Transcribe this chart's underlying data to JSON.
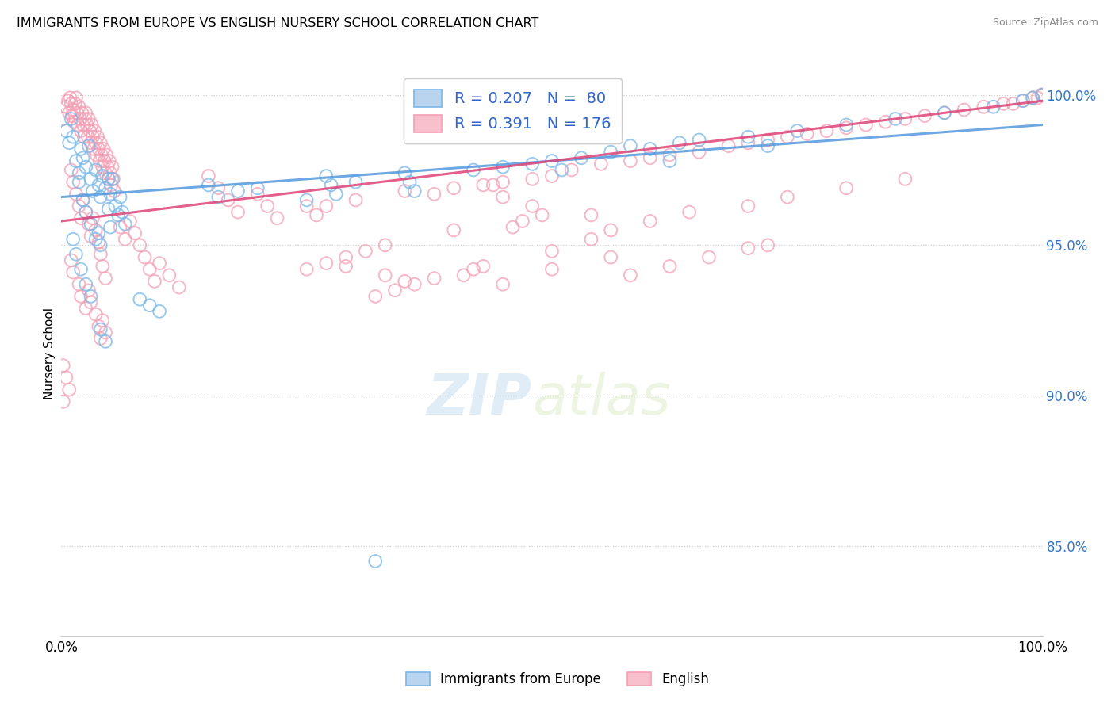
{
  "title": "IMMIGRANTS FROM EUROPE VS ENGLISH NURSERY SCHOOL CORRELATION CHART",
  "source": "Source: ZipAtlas.com",
  "ylabel": "Nursery School",
  "legend_label1": "Immigrants from Europe",
  "legend_label2": "English",
  "R1": 0.207,
  "N1": 80,
  "R2": 0.391,
  "N2": 176,
  "color_blue": "#7ab8e8",
  "color_pink": "#f4a0b5",
  "line_color_blue": "#5599dd",
  "line_color_pink": "#dd4477",
  "ytick_labels": [
    "100.0%",
    "95.0%",
    "90.0%",
    "85.0%"
  ],
  "ytick_values": [
    1.0,
    0.95,
    0.9,
    0.85
  ],
  "background_color": "#ffffff",
  "blue_line_x": [
    0.0,
    1.0
  ],
  "blue_line_y": [
    0.966,
    0.99
  ],
  "pink_line_x": [
    0.0,
    1.0
  ],
  "pink_line_y": [
    0.958,
    0.998
  ],
  "ylim": [
    0.82,
    1.008
  ],
  "xlim": [
    0.0,
    1.0
  ],
  "blue_points": [
    [
      0.005,
      0.988
    ],
    [
      0.008,
      0.984
    ],
    [
      0.01,
      0.992
    ],
    [
      0.012,
      0.986
    ],
    [
      0.015,
      0.978
    ],
    [
      0.018,
      0.974
    ],
    [
      0.02,
      0.982
    ],
    [
      0.022,
      0.979
    ],
    [
      0.025,
      0.976
    ],
    [
      0.028,
      0.983
    ],
    [
      0.03,
      0.972
    ],
    [
      0.032,
      0.968
    ],
    [
      0.035,
      0.975
    ],
    [
      0.038,
      0.97
    ],
    [
      0.04,
      0.966
    ],
    [
      0.042,
      0.973
    ],
    [
      0.045,
      0.969
    ],
    [
      0.048,
      0.962
    ],
    [
      0.05,
      0.967
    ],
    [
      0.052,
      0.972
    ],
    [
      0.055,
      0.963
    ],
    [
      0.058,
      0.96
    ],
    [
      0.06,
      0.966
    ],
    [
      0.062,
      0.961
    ],
    [
      0.065,
      0.957
    ],
    [
      0.018,
      0.971
    ],
    [
      0.022,
      0.965
    ],
    [
      0.025,
      0.961
    ],
    [
      0.03,
      0.957
    ],
    [
      0.035,
      0.952
    ],
    [
      0.038,
      0.954
    ],
    [
      0.04,
      0.95
    ],
    [
      0.012,
      0.952
    ],
    [
      0.015,
      0.947
    ],
    [
      0.048,
      0.972
    ],
    [
      0.05,
      0.956
    ],
    [
      0.02,
      0.942
    ],
    [
      0.025,
      0.937
    ],
    [
      0.03,
      0.933
    ],
    [
      0.08,
      0.932
    ],
    [
      0.04,
      0.922
    ],
    [
      0.045,
      0.918
    ],
    [
      0.15,
      0.97
    ],
    [
      0.16,
      0.966
    ],
    [
      0.27,
      0.973
    ],
    [
      0.275,
      0.97
    ],
    [
      0.28,
      0.967
    ],
    [
      0.35,
      0.974
    ],
    [
      0.355,
      0.971
    ],
    [
      0.36,
      0.968
    ],
    [
      0.5,
      0.978
    ],
    [
      0.51,
      0.975
    ],
    [
      0.6,
      0.982
    ],
    [
      0.62,
      0.978
    ],
    [
      0.7,
      0.986
    ],
    [
      0.72,
      0.983
    ],
    [
      0.75,
      0.988
    ],
    [
      0.8,
      0.99
    ],
    [
      0.85,
      0.992
    ],
    [
      0.9,
      0.994
    ],
    [
      0.95,
      0.996
    ],
    [
      0.98,
      0.998
    ],
    [
      0.99,
      0.999
    ],
    [
      1.0,
      1.0
    ],
    [
      0.3,
      0.971
    ],
    [
      0.25,
      0.965
    ],
    [
      0.18,
      0.968
    ],
    [
      0.09,
      0.93
    ],
    [
      0.1,
      0.928
    ],
    [
      0.2,
      0.969
    ],
    [
      0.42,
      0.975
    ],
    [
      0.45,
      0.976
    ],
    [
      0.48,
      0.977
    ],
    [
      0.53,
      0.979
    ],
    [
      0.56,
      0.981
    ],
    [
      0.58,
      0.983
    ],
    [
      0.63,
      0.984
    ],
    [
      0.65,
      0.985
    ],
    [
      0.32,
      0.845
    ]
  ],
  "pink_points": [
    [
      0.002,
      0.992
    ],
    [
      0.005,
      0.996
    ],
    [
      0.007,
      0.998
    ],
    [
      0.008,
      0.994
    ],
    [
      0.009,
      0.999
    ],
    [
      0.01,
      0.997
    ],
    [
      0.011,
      0.993
    ],
    [
      0.012,
      0.995
    ],
    [
      0.013,
      0.991
    ],
    [
      0.014,
      0.997
    ],
    [
      0.015,
      0.999
    ],
    [
      0.016,
      0.994
    ],
    [
      0.017,
      0.99
    ],
    [
      0.018,
      0.996
    ],
    [
      0.019,
      0.992
    ],
    [
      0.02,
      0.988
    ],
    [
      0.021,
      0.994
    ],
    [
      0.022,
      0.99
    ],
    [
      0.023,
      0.986
    ],
    [
      0.024,
      0.992
    ],
    [
      0.025,
      0.994
    ],
    [
      0.026,
      0.99
    ],
    [
      0.027,
      0.986
    ],
    [
      0.028,
      0.992
    ],
    [
      0.029,
      0.988
    ],
    [
      0.03,
      0.984
    ],
    [
      0.031,
      0.99
    ],
    [
      0.032,
      0.986
    ],
    [
      0.033,
      0.982
    ],
    [
      0.034,
      0.988
    ],
    [
      0.035,
      0.984
    ],
    [
      0.036,
      0.98
    ],
    [
      0.037,
      0.986
    ],
    [
      0.038,
      0.982
    ],
    [
      0.039,
      0.978
    ],
    [
      0.04,
      0.984
    ],
    [
      0.041,
      0.98
    ],
    [
      0.042,
      0.976
    ],
    [
      0.043,
      0.982
    ],
    [
      0.044,
      0.978
    ],
    [
      0.045,
      0.974
    ],
    [
      0.046,
      0.98
    ],
    [
      0.047,
      0.976
    ],
    [
      0.048,
      0.972
    ],
    [
      0.049,
      0.978
    ],
    [
      0.05,
      0.974
    ],
    [
      0.051,
      0.97
    ],
    [
      0.052,
      0.976
    ],
    [
      0.053,
      0.972
    ],
    [
      0.054,
      0.968
    ],
    [
      0.01,
      0.975
    ],
    [
      0.012,
      0.971
    ],
    [
      0.015,
      0.967
    ],
    [
      0.018,
      0.963
    ],
    [
      0.02,
      0.959
    ],
    [
      0.022,
      0.965
    ],
    [
      0.025,
      0.961
    ],
    [
      0.028,
      0.957
    ],
    [
      0.03,
      0.953
    ],
    [
      0.032,
      0.959
    ],
    [
      0.035,
      0.955
    ],
    [
      0.038,
      0.951
    ],
    [
      0.04,
      0.947
    ],
    [
      0.042,
      0.943
    ],
    [
      0.045,
      0.939
    ],
    [
      0.01,
      0.945
    ],
    [
      0.012,
      0.941
    ],
    [
      0.018,
      0.937
    ],
    [
      0.02,
      0.933
    ],
    [
      0.025,
      0.929
    ],
    [
      0.028,
      0.935
    ],
    [
      0.03,
      0.931
    ],
    [
      0.035,
      0.927
    ],
    [
      0.038,
      0.923
    ],
    [
      0.04,
      0.919
    ],
    [
      0.042,
      0.925
    ],
    [
      0.045,
      0.921
    ],
    [
      0.002,
      0.91
    ],
    [
      0.005,
      0.906
    ],
    [
      0.008,
      0.902
    ],
    [
      0.15,
      0.973
    ],
    [
      0.16,
      0.969
    ],
    [
      0.17,
      0.965
    ],
    [
      0.18,
      0.961
    ],
    [
      0.2,
      0.967
    ],
    [
      0.21,
      0.963
    ],
    [
      0.22,
      0.959
    ],
    [
      0.25,
      0.963
    ],
    [
      0.26,
      0.96
    ],
    [
      0.27,
      0.963
    ],
    [
      0.3,
      0.965
    ],
    [
      0.35,
      0.968
    ],
    [
      0.38,
      0.967
    ],
    [
      0.4,
      0.969
    ],
    [
      0.43,
      0.97
    ],
    [
      0.45,
      0.971
    ],
    [
      0.48,
      0.972
    ],
    [
      0.5,
      0.973
    ],
    [
      0.52,
      0.975
    ],
    [
      0.55,
      0.977
    ],
    [
      0.58,
      0.978
    ],
    [
      0.6,
      0.979
    ],
    [
      0.62,
      0.98
    ],
    [
      0.65,
      0.981
    ],
    [
      0.68,
      0.983
    ],
    [
      0.7,
      0.984
    ],
    [
      0.72,
      0.985
    ],
    [
      0.74,
      0.986
    ],
    [
      0.76,
      0.987
    ],
    [
      0.78,
      0.988
    ],
    [
      0.8,
      0.989
    ],
    [
      0.82,
      0.99
    ],
    [
      0.84,
      0.991
    ],
    [
      0.86,
      0.992
    ],
    [
      0.88,
      0.993
    ],
    [
      0.9,
      0.994
    ],
    [
      0.92,
      0.995
    ],
    [
      0.94,
      0.996
    ],
    [
      0.96,
      0.997
    ],
    [
      0.97,
      0.997
    ],
    [
      0.98,
      0.998
    ],
    [
      0.99,
      0.999
    ],
    [
      0.995,
      0.999
    ],
    [
      0.999,
      1.0
    ],
    [
      1.0,
      1.0
    ],
    [
      0.06,
      0.956
    ],
    [
      0.065,
      0.952
    ],
    [
      0.07,
      0.958
    ],
    [
      0.075,
      0.954
    ],
    [
      0.08,
      0.95
    ],
    [
      0.085,
      0.946
    ],
    [
      0.09,
      0.942
    ],
    [
      0.095,
      0.938
    ],
    [
      0.1,
      0.944
    ],
    [
      0.11,
      0.94
    ],
    [
      0.12,
      0.936
    ],
    [
      0.54,
      0.96
    ],
    [
      0.43,
      0.943
    ],
    [
      0.5,
      0.948
    ],
    [
      0.54,
      0.952
    ],
    [
      0.56,
      0.955
    ],
    [
      0.6,
      0.958
    ],
    [
      0.64,
      0.961
    ],
    [
      0.7,
      0.963
    ],
    [
      0.74,
      0.966
    ],
    [
      0.8,
      0.969
    ],
    [
      0.86,
      0.972
    ],
    [
      0.4,
      0.955
    ],
    [
      0.35,
      0.938
    ],
    [
      0.5,
      0.942
    ],
    [
      0.56,
      0.946
    ],
    [
      0.33,
      0.94
    ],
    [
      0.29,
      0.943
    ],
    [
      0.45,
      0.937
    ],
    [
      0.44,
      0.97
    ],
    [
      0.45,
      0.966
    ],
    [
      0.48,
      0.963
    ],
    [
      0.49,
      0.96
    ],
    [
      0.47,
      0.958
    ],
    [
      0.46,
      0.956
    ],
    [
      0.33,
      0.95
    ],
    [
      0.31,
      0.948
    ],
    [
      0.29,
      0.946
    ],
    [
      0.27,
      0.944
    ],
    [
      0.25,
      0.942
    ],
    [
      0.002,
      0.898
    ],
    [
      0.58,
      0.94
    ],
    [
      0.62,
      0.943
    ],
    [
      0.66,
      0.946
    ],
    [
      0.7,
      0.949
    ],
    [
      0.72,
      0.95
    ],
    [
      0.41,
      0.94
    ],
    [
      0.42,
      0.942
    ],
    [
      0.38,
      0.939
    ],
    [
      0.36,
      0.937
    ],
    [
      0.34,
      0.935
    ],
    [
      0.32,
      0.933
    ]
  ]
}
